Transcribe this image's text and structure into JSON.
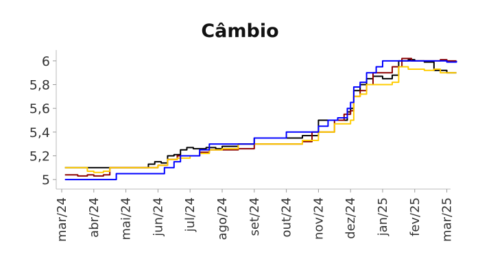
{
  "chart_data": {
    "type": "line",
    "title": "Câmbio",
    "xlabel": "",
    "ylabel": "",
    "x_ticks": [
      "mar/24",
      "abr/24",
      "mai/24",
      "jun/24",
      "jul/24",
      "ago/24",
      "set/24",
      "out/24",
      "nov/24",
      "dez/24",
      "jan/25",
      "fev/25",
      "mar/25"
    ],
    "y_ticks": [
      "5",
      "5,2",
      "5,4",
      "5,6",
      "5,8",
      "6"
    ],
    "y_tick_values": [
      5,
      5.2,
      5.4,
      5.6,
      5.8,
      6
    ],
    "x_range": [
      0,
      12.5
    ],
    "ylim": [
      4.92,
      6.08
    ],
    "grid": false,
    "legend": "none",
    "series": [
      {
        "color": "#000000",
        "points": [
          [
            0.1,
            5.1
          ],
          [
            0.5,
            5.1
          ],
          [
            0.8,
            5.1
          ],
          [
            1.0,
            5.1
          ],
          [
            1.5,
            5.1
          ],
          [
            2.0,
            5.1
          ],
          [
            2.5,
            5.1
          ],
          [
            2.7,
            5.13
          ],
          [
            2.9,
            5.15
          ],
          [
            3.1,
            5.14
          ],
          [
            3.3,
            5.2
          ],
          [
            3.5,
            5.21
          ],
          [
            3.7,
            5.25
          ],
          [
            3.9,
            5.27
          ],
          [
            4.1,
            5.26
          ],
          [
            4.5,
            5.27
          ],
          [
            4.8,
            5.26
          ],
          [
            5.0,
            5.28
          ],
          [
            5.5,
            5.3
          ],
          [
            6.0,
            5.35
          ],
          [
            6.5,
            5.35
          ],
          [
            7.0,
            5.35
          ],
          [
            7.5,
            5.37
          ],
          [
            8.0,
            5.5
          ],
          [
            8.5,
            5.5
          ],
          [
            8.9,
            5.57
          ],
          [
            9.0,
            5.6
          ],
          [
            9.1,
            5.75
          ],
          [
            9.3,
            5.8
          ],
          [
            9.5,
            5.85
          ],
          [
            9.7,
            5.87
          ],
          [
            10.0,
            5.85
          ],
          [
            10.3,
            5.88
          ],
          [
            10.5,
            6.0
          ],
          [
            10.8,
            6.01
          ],
          [
            11.0,
            6.0
          ],
          [
            11.3,
            5.99
          ],
          [
            11.5,
            5.99
          ],
          [
            11.6,
            5.92
          ],
          [
            11.8,
            5.92
          ],
          [
            12.0,
            5.9
          ],
          [
            12.3,
            5.9
          ]
        ]
      },
      {
        "color": "#8b0000",
        "points": [
          [
            0.1,
            5.04
          ],
          [
            0.5,
            5.03
          ],
          [
            0.8,
            5.04
          ],
          [
            1.0,
            5.03
          ],
          [
            1.3,
            5.04
          ],
          [
            1.5,
            5.1
          ],
          [
            2.0,
            5.1
          ],
          [
            2.5,
            5.1
          ],
          [
            2.8,
            5.1
          ],
          [
            3.0,
            5.12
          ],
          [
            3.3,
            5.17
          ],
          [
            3.6,
            5.2
          ],
          [
            4.0,
            5.2
          ],
          [
            4.3,
            5.23
          ],
          [
            4.6,
            5.25
          ],
          [
            5.0,
            5.25
          ],
          [
            5.5,
            5.26
          ],
          [
            6.0,
            5.3
          ],
          [
            6.5,
            5.3
          ],
          [
            7.0,
            5.3
          ],
          [
            7.5,
            5.32
          ],
          [
            7.8,
            5.4
          ],
          [
            8.0,
            5.4
          ],
          [
            8.5,
            5.5
          ],
          [
            8.8,
            5.55
          ],
          [
            9.0,
            5.58
          ],
          [
            9.1,
            5.7
          ],
          [
            9.3,
            5.75
          ],
          [
            9.5,
            5.8
          ],
          [
            9.7,
            5.9
          ],
          [
            10.0,
            5.9
          ],
          [
            10.3,
            5.95
          ],
          [
            10.6,
            6.02
          ],
          [
            10.9,
            6.0
          ],
          [
            11.2,
            6.0
          ],
          [
            11.5,
            6.0
          ],
          [
            11.8,
            6.01
          ],
          [
            12.0,
            6.0
          ],
          [
            12.3,
            6.0
          ]
        ]
      },
      {
        "color": "#ffcc00",
        "points": [
          [
            0.1,
            5.1
          ],
          [
            0.5,
            5.1
          ],
          [
            0.8,
            5.07
          ],
          [
            1.0,
            5.06
          ],
          [
            1.3,
            5.07
          ],
          [
            1.5,
            5.1
          ],
          [
            2.0,
            5.1
          ],
          [
            2.5,
            5.1
          ],
          [
            2.8,
            5.1
          ],
          [
            3.0,
            5.12
          ],
          [
            3.3,
            5.17
          ],
          [
            3.6,
            5.18
          ],
          [
            4.0,
            5.2
          ],
          [
            4.3,
            5.22
          ],
          [
            4.6,
            5.25
          ],
          [
            5.0,
            5.26
          ],
          [
            5.5,
            5.3
          ],
          [
            6.0,
            5.3
          ],
          [
            6.5,
            5.3
          ],
          [
            7.0,
            5.3
          ],
          [
            7.5,
            5.33
          ],
          [
            8.0,
            5.4
          ],
          [
            8.5,
            5.47
          ],
          [
            9.0,
            5.5
          ],
          [
            9.1,
            5.7
          ],
          [
            9.3,
            5.72
          ],
          [
            9.5,
            5.8
          ],
          [
            10.0,
            5.8
          ],
          [
            10.3,
            5.82
          ],
          [
            10.5,
            5.95
          ],
          [
            10.8,
            5.93
          ],
          [
            11.0,
            5.93
          ],
          [
            11.3,
            5.92
          ],
          [
            11.6,
            5.93
          ],
          [
            11.8,
            5.9
          ],
          [
            12.0,
            5.9
          ],
          [
            12.3,
            5.9
          ]
        ]
      },
      {
        "color": "#0000ff",
        "points": [
          [
            0.1,
            5.0
          ],
          [
            0.5,
            5.0
          ],
          [
            1.0,
            5.0
          ],
          [
            1.5,
            5.0
          ],
          [
            1.7,
            5.05
          ],
          [
            2.0,
            5.05
          ],
          [
            2.5,
            5.05
          ],
          [
            3.0,
            5.05
          ],
          [
            3.2,
            5.1
          ],
          [
            3.5,
            5.15
          ],
          [
            3.7,
            5.2
          ],
          [
            4.0,
            5.2
          ],
          [
            4.3,
            5.25
          ],
          [
            4.6,
            5.3
          ],
          [
            5.0,
            5.3
          ],
          [
            5.5,
            5.3
          ],
          [
            6.0,
            5.35
          ],
          [
            6.5,
            5.35
          ],
          [
            7.0,
            5.4
          ],
          [
            7.5,
            5.4
          ],
          [
            8.0,
            5.45
          ],
          [
            8.3,
            5.5
          ],
          [
            8.6,
            5.52
          ],
          [
            8.9,
            5.6
          ],
          [
            9.0,
            5.65
          ],
          [
            9.1,
            5.78
          ],
          [
            9.3,
            5.82
          ],
          [
            9.5,
            5.9
          ],
          [
            9.8,
            5.95
          ],
          [
            10.0,
            6.0
          ],
          [
            10.5,
            6.0
          ],
          [
            11.0,
            6.0
          ],
          [
            11.5,
            6.0
          ],
          [
            12.0,
            5.99
          ],
          [
            12.3,
            6.0
          ]
        ]
      }
    ]
  }
}
